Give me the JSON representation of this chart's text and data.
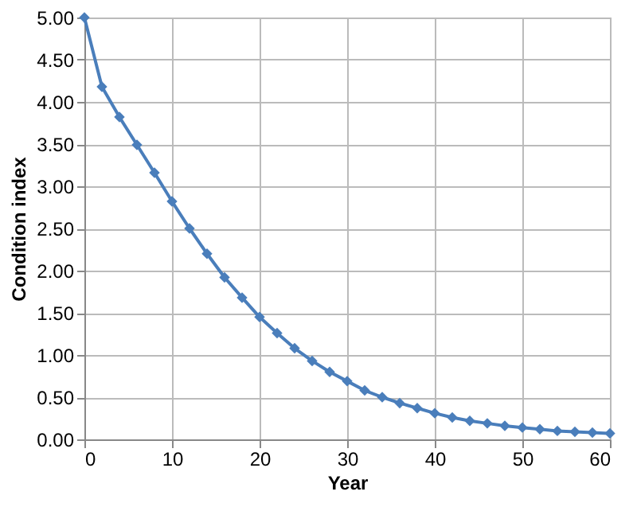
{
  "chart_data": {
    "type": "line",
    "xlabel": "Year",
    "ylabel": "Condition index",
    "x": [
      0,
      2,
      4,
      6,
      8,
      10,
      12,
      14,
      16,
      18,
      20,
      22,
      24,
      26,
      28,
      30,
      32,
      34,
      36,
      38,
      40,
      42,
      44,
      46,
      48,
      50,
      52,
      54,
      56,
      58,
      60
    ],
    "series": [
      {
        "color": "#4a7ebb",
        "values": [
          5.0,
          4.18,
          3.82,
          3.49,
          3.16,
          2.82,
          2.5,
          2.2,
          1.92,
          1.68,
          1.45,
          1.26,
          1.08,
          0.93,
          0.8,
          0.69,
          0.58,
          0.5,
          0.43,
          0.37,
          0.31,
          0.26,
          0.22,
          0.19,
          0.16,
          0.14,
          0.12,
          0.1,
          0.09,
          0.08,
          0.07
        ]
      }
    ],
    "xlim": [
      0,
      60
    ],
    "xticks": [
      0,
      10,
      20,
      30,
      40,
      50,
      60
    ],
    "ylim": [
      0,
      5
    ],
    "yticks": [
      {
        "value": 0,
        "label": "0.00"
      },
      {
        "value": 0.5,
        "label": "0.50"
      },
      {
        "value": 1,
        "label": "1.00"
      },
      {
        "value": 1.5,
        "label": "1.50"
      },
      {
        "value": 2,
        "label": "2.00"
      },
      {
        "value": 2.5,
        "label": "2.50"
      },
      {
        "value": 3,
        "label": "3.00"
      },
      {
        "value": 3.5,
        "label": "3.50"
      },
      {
        "value": 4,
        "label": "4.00"
      },
      {
        "value": 4.5,
        "label": "4.50"
      },
      {
        "value": 5,
        "label": "5.00"
      }
    ],
    "grid": true,
    "marker": "diamond",
    "line_style": "solid"
  }
}
